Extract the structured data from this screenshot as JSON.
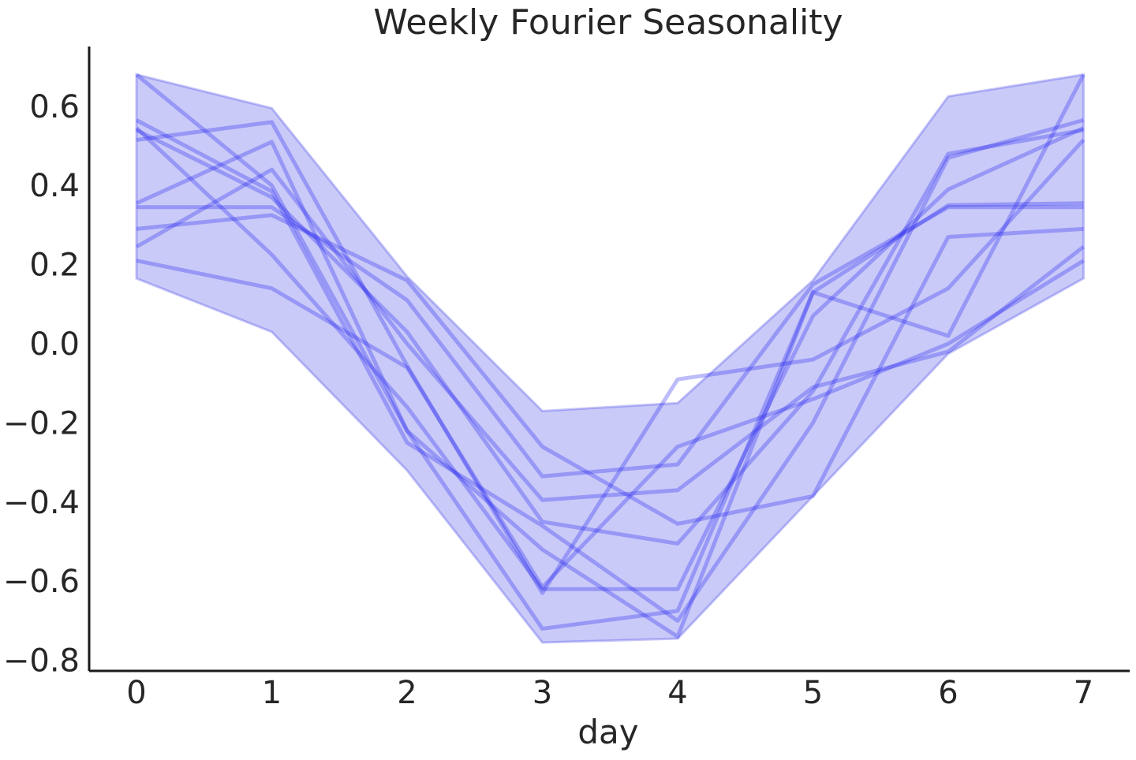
{
  "chart_data": {
    "type": "line",
    "title": "Weekly Fourier Seasonality",
    "xlabel": "day",
    "ylabel": "",
    "xlim": [
      -0.35,
      7.35
    ],
    "ylim": [
      -0.83,
      0.75
    ],
    "x": [
      0,
      1,
      2,
      3,
      4,
      5,
      6,
      7
    ],
    "xticks": [
      "0",
      "1",
      "2",
      "3",
      "4",
      "5",
      "6",
      "7"
    ],
    "yticks": [
      0.6,
      0.4,
      0.2,
      0.0,
      -0.2,
      -0.4,
      -0.6,
      -0.8
    ],
    "ytick_labels": [
      "0.6",
      "0.4",
      "0.2",
      "0.0",
      "−0.2",
      "−0.4",
      "−0.6",
      "−0.8"
    ],
    "grid": false,
    "band": {
      "upper": [
        0.68,
        0.595,
        0.17,
        -0.17,
        -0.15,
        0.16,
        0.625,
        0.68
      ],
      "lower": [
        0.165,
        0.03,
        -0.32,
        -0.755,
        -0.745,
        -0.385,
        -0.025,
        0.165
      ]
    },
    "series": [
      {
        "values": [
          0.68,
          0.4,
          -0.22,
          -0.72,
          -0.675,
          0.13,
          0.02,
          0.68
        ]
      },
      {
        "values": [
          0.565,
          0.385,
          -0.25,
          -0.46,
          -0.7,
          -0.2,
          0.47,
          0.565
        ]
      },
      {
        "values": [
          0.545,
          0.225,
          -0.16,
          -0.62,
          -0.62,
          0.07,
          0.39,
          0.545
        ]
      },
      {
        "values": [
          0.54,
          0.37,
          0.03,
          -0.45,
          -0.505,
          -0.12,
          0.48,
          0.54
        ]
      },
      {
        "values": [
          0.515,
          0.56,
          -0.055,
          -0.63,
          -0.09,
          -0.04,
          0.14,
          0.515
        ]
      },
      {
        "values": [
          0.355,
          0.51,
          -0.22,
          -0.52,
          -0.74,
          0.13,
          0.35,
          0.355
        ]
      },
      {
        "values": [
          0.345,
          0.345,
          0.11,
          -0.335,
          -0.305,
          0.15,
          0.345,
          0.345
        ]
      },
      {
        "values": [
          0.29,
          0.325,
          0.16,
          -0.26,
          -0.455,
          -0.385,
          0.27,
          0.29
        ]
      },
      {
        "values": [
          0.245,
          0.44,
          0.0,
          -0.395,
          -0.37,
          -0.11,
          -0.02,
          0.245
        ]
      },
      {
        "values": [
          0.21,
          0.14,
          -0.06,
          -0.615,
          -0.26,
          -0.14,
          0.0,
          0.21
        ]
      }
    ],
    "colors": {
      "line": "#2222ee",
      "band": "#3a3ae8",
      "axis": "#1a1a1a",
      "text": "#262626"
    }
  }
}
